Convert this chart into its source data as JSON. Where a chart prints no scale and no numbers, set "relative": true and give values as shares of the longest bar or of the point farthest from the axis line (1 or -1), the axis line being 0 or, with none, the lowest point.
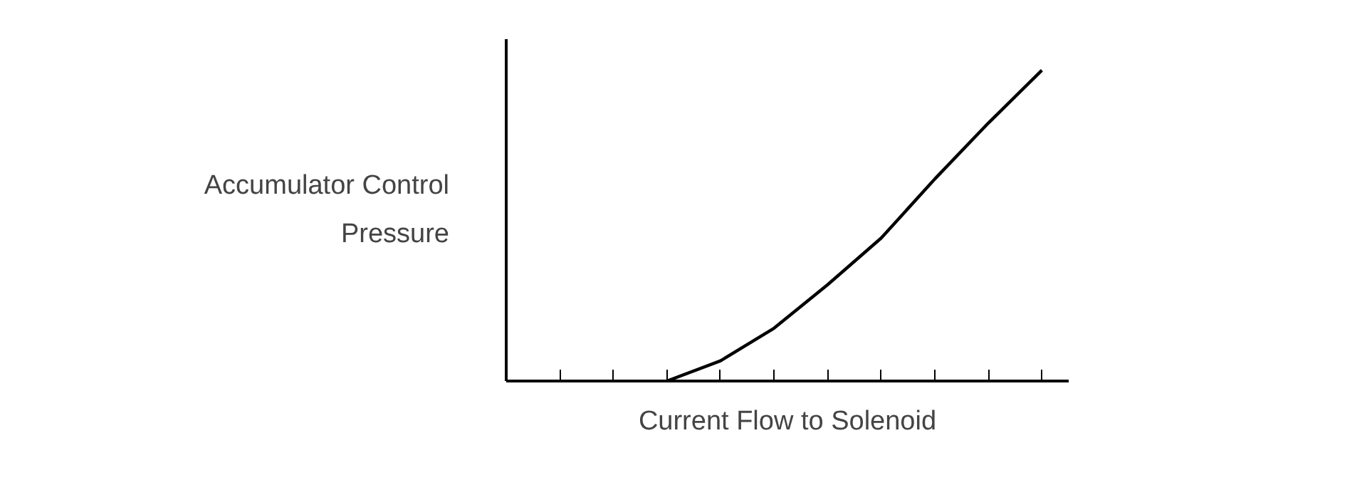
{
  "chart_data": {
    "type": "line",
    "relative": true,
    "xlabel": "Current Flow to Solenoid",
    "ylabel": "Accumulator Control\nPressure",
    "categories": [
      null,
      null,
      null,
      null,
      null,
      null,
      null,
      null,
      null,
      null,
      null
    ],
    "series": [
      {
        "color": "#000000",
        "values": [
          null,
          null,
          null,
          0,
          0.065,
          0.17,
          0.31,
          0.46,
          0.65,
          0.83,
          1.0
        ]
      }
    ],
    "grid": false
  }
}
